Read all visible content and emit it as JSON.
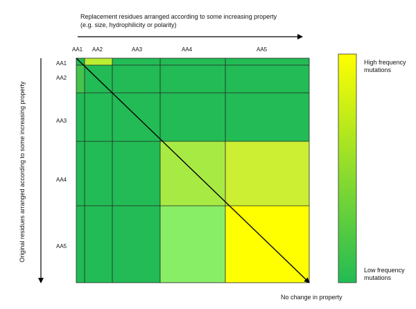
{
  "top_axis": {
    "line1": "Replacement residues arranged according to some increasing property",
    "line2": "(e.g. size, hydrophilicity or polarity)"
  },
  "left_axis": {
    "label": "Original residues arranged according to some increasing property"
  },
  "column_labels": [
    "AA1",
    "AA2",
    "AA3",
    "AA4",
    "AA5"
  ],
  "row_labels": [
    "AA1",
    "AA2",
    "AA3",
    "AA4",
    "AA5"
  ],
  "legend": {
    "high_line1": "High frequency",
    "high_line2": "mutations",
    "low_line1": "Low frequency",
    "low_line2": "mutations",
    "high_color": "#ffff00",
    "low_color": "#22bb55"
  },
  "diagonal_label": "No change in property",
  "colors": {
    "base_green": "#22bb55",
    "light_green": "#88ee66",
    "yellow_green": "#bbee33",
    "yellow": "#ffff00",
    "mid_green": "#44c44c"
  }
}
